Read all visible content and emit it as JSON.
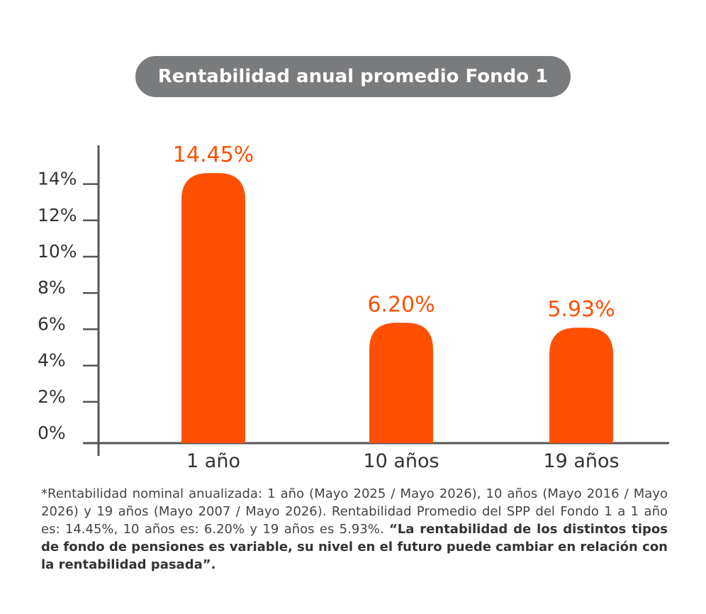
{
  "title": "Rentabilidad anual promedio Fondo 1",
  "colors": {
    "bar": "#fe5000",
    "label": "#fe5000",
    "axis": "#555555",
    "tick_text": "#333333",
    "title_bg": "#7a7b7d"
  },
  "chart_data": {
    "type": "bar",
    "title": "Rentabilidad anual promedio Fondo 1",
    "categories": [
      "1 año",
      "10 años",
      "19 años"
    ],
    "values": [
      14.45,
      6.2,
      5.93
    ],
    "data_labels": [
      "14.45%",
      "6.20%",
      "5.93%"
    ],
    "ylim": [
      0,
      16
    ],
    "y_ticks": [
      0,
      2,
      4,
      6,
      8,
      10,
      12,
      14
    ],
    "y_tick_labels": [
      "0%",
      "2%",
      "4%",
      "6%",
      "8%",
      "10%",
      "12%",
      "14%"
    ],
    "grid": false,
    "legend": "none"
  },
  "footnote": {
    "text": "*Rentabilidad nominal anualizada: 1 año (Mayo 2025 / Mayo 2026), 10 años (Mayo 2016 / Mayo 2026) y 19 años (Mayo 2007 / Mayo 2026). Rentabilidad Promedio del SPP del Fondo 1 a 1 año es: 14.45%, 10 años es: 6.20% y 19 años es 5.93%.",
    "bold": "“La rentabilidad de los distintos tipos de fondo de pensiones es variable, su nivel en el futuro puede cambiar en relación con la rentabilidad pasada”."
  }
}
